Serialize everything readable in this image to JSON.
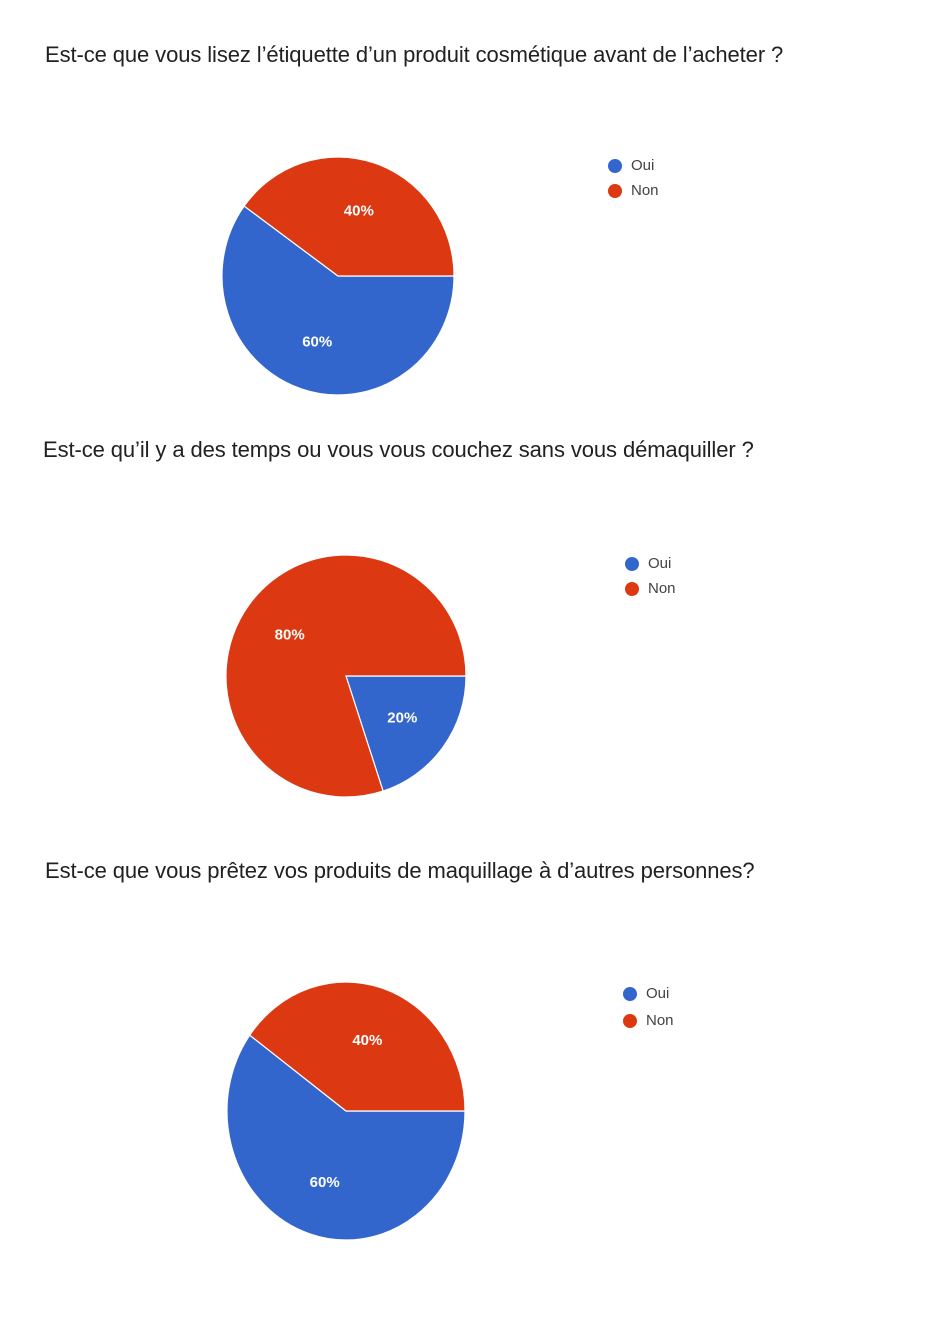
{
  "colors": {
    "oui": "#3366cc",
    "non": "#dc3912"
  },
  "chart_data": [
    {
      "type": "pie",
      "title": "Est-ce que vous lisez l’étiquette d’un produit cosmétique avant de l’acheter ?",
      "legend_position": "right",
      "slices": [
        {
          "name": "Oui",
          "value": 60,
          "label": "60%"
        },
        {
          "name": "Non",
          "value": 40,
          "label": "40%"
        }
      ]
    },
    {
      "type": "pie",
      "title": "Est-ce qu’il y a des temps ou vous vous couchez sans vous démaquiller ?",
      "legend_position": "right",
      "slices": [
        {
          "name": "Oui",
          "value": 20,
          "label": "20%"
        },
        {
          "name": "Non",
          "value": 80,
          "label": "80%"
        }
      ]
    },
    {
      "type": "pie",
      "title": "Est-ce que vous prêtez vos produits de maquillage à d’autres personnes?",
      "legend_position": "right",
      "slices": [
        {
          "name": "Oui",
          "value": 60,
          "label": "60%"
        },
        {
          "name": "Non",
          "value": 40,
          "label": "40%"
        }
      ]
    }
  ]
}
